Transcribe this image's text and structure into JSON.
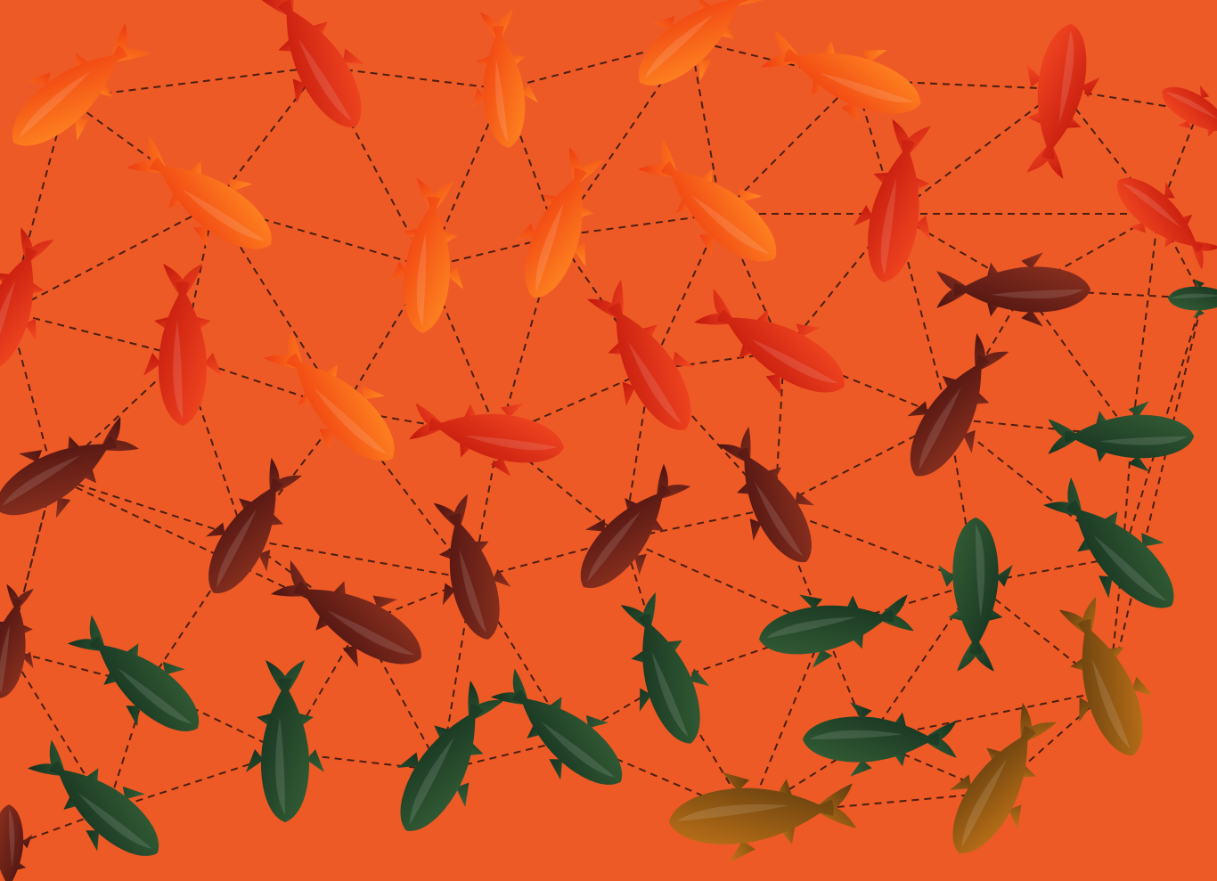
{
  "scene": {
    "description_free": true,
    "background_color": "#ee5a26",
    "line_color": "#4a1f12",
    "palette": {
      "orange": [
        "#ff7a1a",
        "#ee3a10"
      ],
      "red": [
        "#f0341a",
        "#c41a0e"
      ],
      "maroon": [
        "#8a2e1e",
        "#4e1410"
      ],
      "green": [
        "#2f5a34",
        "#173626"
      ],
      "amber": [
        "#b86a18",
        "#6a4010"
      ]
    },
    "fish": [
      {
        "color": "orange",
        "node": 0
      },
      {
        "color": "red",
        "node": 1
      },
      {
        "color": "orange",
        "node": 2
      },
      {
        "color": "orange",
        "node": 3
      },
      {
        "color": "orange",
        "node": 4
      },
      {
        "color": "red",
        "node": 5
      },
      {
        "color": "red",
        "node": 6
      },
      {
        "color": "orange",
        "node": 7
      },
      {
        "color": "orange",
        "node": 8
      },
      {
        "color": "orange",
        "node": 9
      },
      {
        "color": "orange",
        "node": 10
      },
      {
        "color": "red",
        "node": 11
      },
      {
        "color": "red",
        "node": 12
      },
      {
        "color": "red",
        "node": 13
      },
      {
        "color": "red",
        "node": 14
      },
      {
        "color": "orange",
        "node": 15
      },
      {
        "color": "red",
        "node": 16
      },
      {
        "color": "red",
        "node": 17
      },
      {
        "color": "red",
        "node": 18
      },
      {
        "color": "maroon",
        "node": 19
      },
      {
        "color": "maroon",
        "node": 20
      },
      {
        "color": "maroon",
        "node": 21
      },
      {
        "color": "maroon",
        "node": 22
      },
      {
        "color": "maroon",
        "node": 23
      },
      {
        "color": "maroon",
        "node": 24
      },
      {
        "color": "maroon",
        "node": 25
      },
      {
        "color": "maroon",
        "node": 26
      },
      {
        "color": "green",
        "node": 27
      },
      {
        "color": "green",
        "node": 28
      },
      {
        "color": "green",
        "node": 29
      },
      {
        "color": "green",
        "node": 30
      },
      {
        "color": "green",
        "node": 31
      },
      {
        "color": "green",
        "node": 32
      },
      {
        "color": "green",
        "node": 33
      },
      {
        "color": "green",
        "node": 34
      },
      {
        "color": "green",
        "node": 35
      },
      {
        "color": "green",
        "node": 36
      },
      {
        "color": "green",
        "node": 37
      },
      {
        "color": "amber",
        "node": 38
      },
      {
        "color": "amber",
        "node": 39
      },
      {
        "color": "amber",
        "node": 40
      },
      {
        "color": "green",
        "node": 41
      }
    ]
  }
}
